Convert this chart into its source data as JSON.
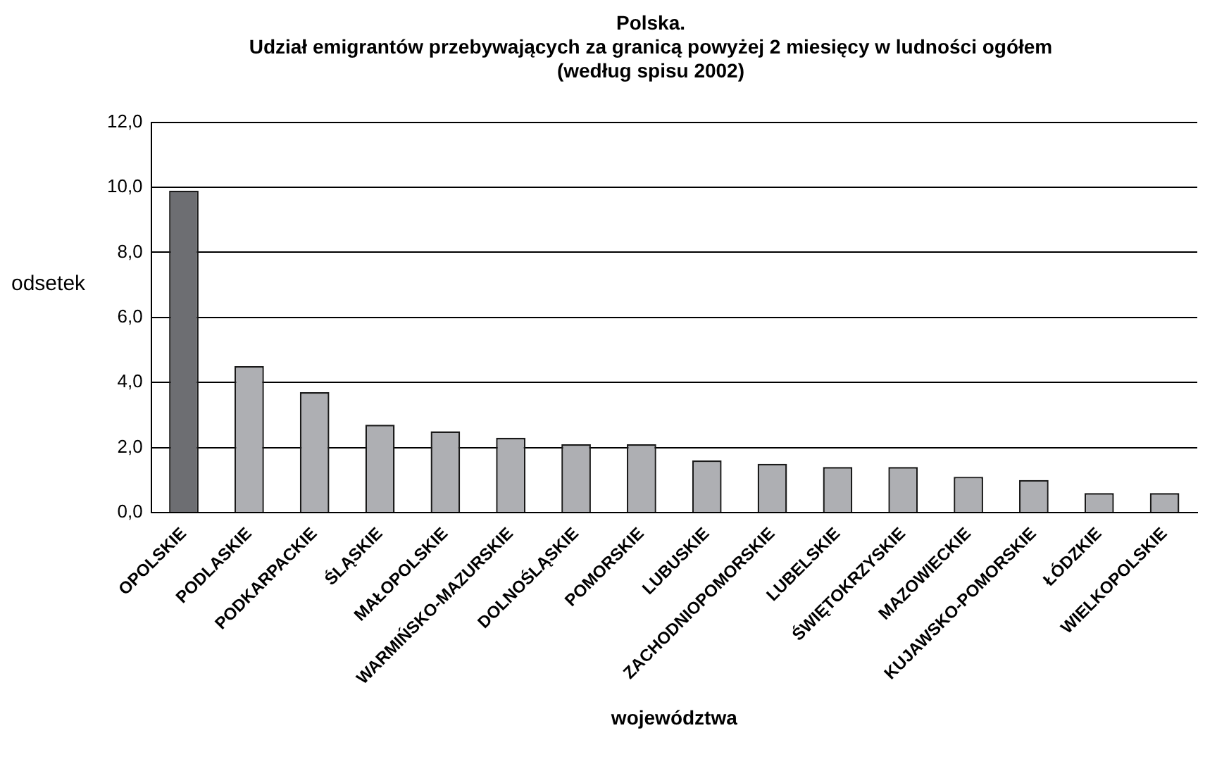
{
  "chart_data": {
    "type": "bar",
    "title": "Polska.",
    "subtitle": "Udział emigrantów przebywających za granicą powyżej 2 miesięcy w ludności ogółem\n(według spisu 2002)",
    "xlabel": "województwa",
    "ylabel": "odsetek",
    "categories": [
      "OPOLSKIE",
      "PODLASKIE",
      "PODKARPACKIE",
      "ŚLĄSKIE",
      "MAŁOPOLSKIE",
      "WARMIŃSKO-MAZURSKIE",
      "DOLNOŚLĄSKIE",
      "POMORSKIE",
      "LUBUSKIE",
      "ZACHODNIOPOMORSKIE",
      "LUBELSKIE",
      "ŚWIĘTOKRZYSKIE",
      "MAZOWIECKIE",
      "KUJAWSKO-POMORSKIE",
      "ŁÓDZKIE",
      "WIELKOPOLSKIE"
    ],
    "values": [
      9.9,
      4.5,
      3.7,
      2.7,
      2.5,
      2.3,
      2.1,
      2.1,
      1.6,
      1.5,
      1.4,
      1.4,
      1.1,
      1.0,
      0.6,
      0.6
    ],
    "colors": [
      "#6d6e72",
      "#aeafb3",
      "#aeafb3",
      "#aeafb3",
      "#aeafb3",
      "#aeafb3",
      "#aeafb3",
      "#aeafb3",
      "#aeafb3",
      "#aeafb3",
      "#aeafb3",
      "#aeafb3",
      "#aeafb3",
      "#aeafb3",
      "#aeafb3",
      "#aeafb3"
    ],
    "ylim": [
      0,
      12
    ],
    "yticks": [
      {
        "value": 0,
        "label": "0,0"
      },
      {
        "value": 2,
        "label": "2,0"
      },
      {
        "value": 4,
        "label": "4,0"
      },
      {
        "value": 6,
        "label": "6,0"
      },
      {
        "value": 8,
        "label": "8,0"
      },
      {
        "value": 10,
        "label": "10,0"
      },
      {
        "value": 12,
        "label": "12,0"
      }
    ],
    "grid": "y",
    "legend": false
  }
}
